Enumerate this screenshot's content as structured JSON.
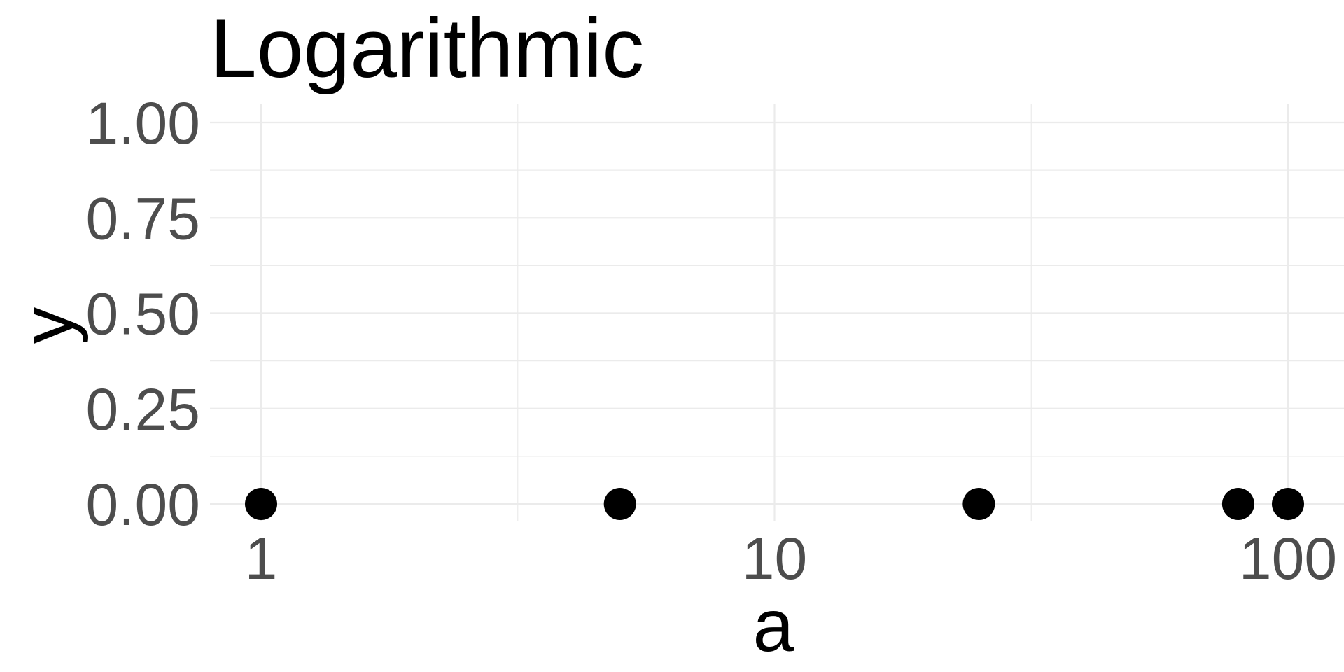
{
  "chart_data": {
    "type": "scatter",
    "title": "Logarithmic",
    "xlabel": "a",
    "ylabel": "y",
    "x_scale": "log10",
    "xlim": [
      0.8,
      120
    ],
    "ylim": [
      0,
      1
    ],
    "x_ticks": [
      {
        "value": 1,
        "label": "1"
      },
      {
        "value": 10,
        "label": "10"
      },
      {
        "value": 100,
        "label": "100"
      }
    ],
    "y_ticks": [
      {
        "value": 0,
        "label": "0.00"
      },
      {
        "value": 0.25,
        "label": "0.25"
      },
      {
        "value": 0.5,
        "label": "0.50"
      },
      {
        "value": 0.75,
        "label": "0.75"
      },
      {
        "value": 1,
        "label": "1.00"
      }
    ],
    "grid": true,
    "legend": "none",
    "point_color": "#000000",
    "grid_color": "#ebebeb",
    "points": [
      {
        "x": 1,
        "y": 0
      },
      {
        "x": 5,
        "y": 0
      },
      {
        "x": 25,
        "y": 0
      },
      {
        "x": 80,
        "y": 0
      },
      {
        "x": 100,
        "y": 0
      }
    ]
  }
}
